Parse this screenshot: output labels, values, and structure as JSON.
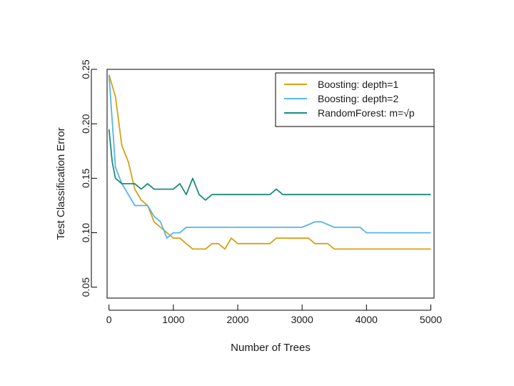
{
  "chart_data": {
    "type": "line",
    "title": "",
    "xlabel": "Number of Trees",
    "ylabel": "Test Classification Error",
    "xlim": [
      -30,
      5050
    ],
    "ylim": [
      0.04,
      0.25
    ],
    "xticks": [
      0,
      1000,
      2000,
      3000,
      4000,
      5000
    ],
    "xtick_labels": [
      "0",
      "1000",
      "2000",
      "3000",
      "4000",
      "5000"
    ],
    "yticks": [
      0.05,
      0.1,
      0.15,
      0.2,
      0.25
    ],
    "ytick_labels": [
      "0.05",
      "0.10",
      "0.15",
      "0.20",
      "0.25"
    ],
    "grid": false,
    "legend_position": "top-right",
    "series": [
      {
        "name": "Boosting: depth=1",
        "color": "#d4a017",
        "x": [
          0,
          100,
          200,
          300,
          400,
          500,
          600,
          700,
          800,
          900,
          1000,
          1100,
          1200,
          1300,
          1400,
          1500,
          1600,
          1700,
          1800,
          1900,
          2000,
          2100,
          2200,
          2300,
          2400,
          2500,
          2600,
          2700,
          2800,
          2900,
          3000,
          3100,
          3200,
          3300,
          3400,
          3500,
          3600,
          4000,
          5000
        ],
        "values": [
          0.245,
          0.225,
          0.18,
          0.165,
          0.14,
          0.13,
          0.125,
          0.11,
          0.105,
          0.1,
          0.095,
          0.095,
          0.09,
          0.085,
          0.085,
          0.085,
          0.09,
          0.09,
          0.085,
          0.095,
          0.09,
          0.09,
          0.09,
          0.09,
          0.09,
          0.09,
          0.095,
          0.095,
          0.095,
          0.095,
          0.095,
          0.095,
          0.09,
          0.09,
          0.09,
          0.085,
          0.085,
          0.085,
          0.085
        ]
      },
      {
        "name": "Boosting: depth=2",
        "color": "#56b4e9",
        "x": [
          0,
          100,
          200,
          300,
          400,
          500,
          600,
          700,
          800,
          900,
          1000,
          1100,
          1200,
          1300,
          1400,
          1500,
          2000,
          2500,
          3000,
          3200,
          3300,
          3500,
          3900,
          4000,
          5000
        ],
        "values": [
          0.245,
          0.16,
          0.145,
          0.135,
          0.125,
          0.125,
          0.125,
          0.115,
          0.11,
          0.095,
          0.1,
          0.1,
          0.105,
          0.105,
          0.105,
          0.105,
          0.105,
          0.105,
          0.105,
          0.11,
          0.11,
          0.105,
          0.105,
          0.1,
          0.1
        ]
      },
      {
        "name": "RandomForest: m=√p",
        "color": "#1a8c7e",
        "x": [
          0,
          50,
          100,
          200,
          300,
          400,
          500,
          600,
          700,
          800,
          900,
          1000,
          1100,
          1200,
          1300,
          1400,
          1500,
          1600,
          1700,
          2000,
          2500,
          2600,
          2700,
          3000,
          4000,
          5000
        ],
        "values": [
          0.195,
          0.165,
          0.15,
          0.145,
          0.145,
          0.145,
          0.14,
          0.145,
          0.14,
          0.14,
          0.14,
          0.14,
          0.145,
          0.135,
          0.15,
          0.135,
          0.13,
          0.135,
          0.135,
          0.135,
          0.135,
          0.14,
          0.135,
          0.135,
          0.135,
          0.135
        ]
      }
    ]
  }
}
